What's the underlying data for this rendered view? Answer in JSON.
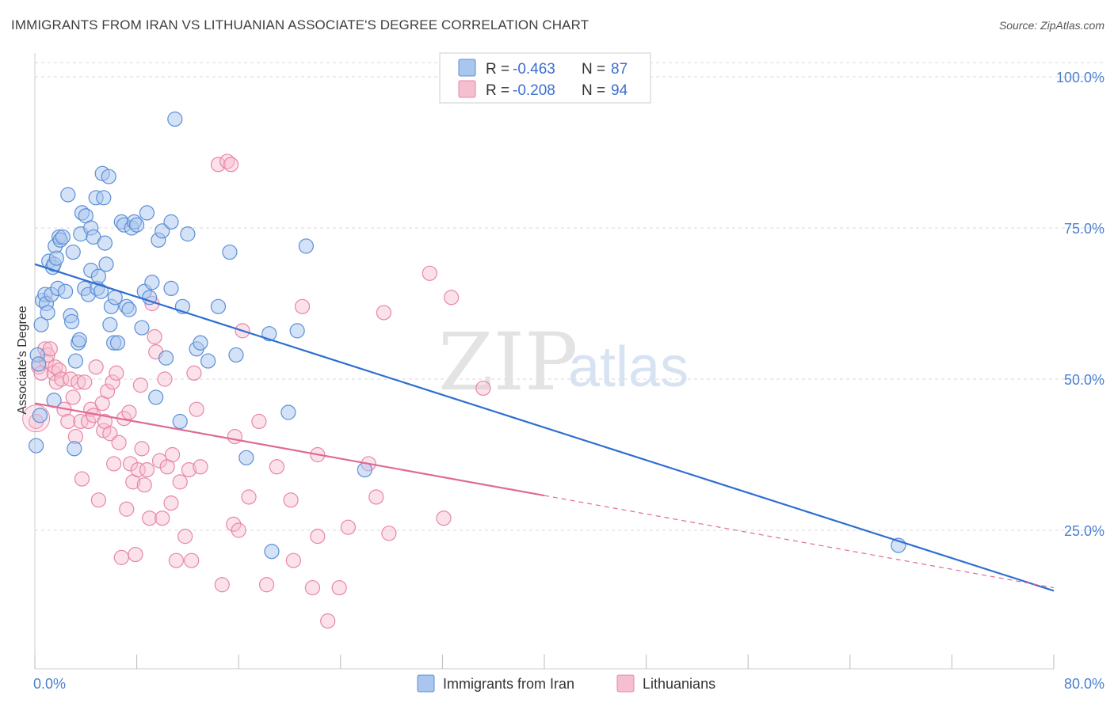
{
  "title": "IMMIGRANTS FROM IRAN VS LITHUANIAN ASSOCIATE'S DEGREE CORRELATION CHART",
  "source": "Source: ZipAtlas.com",
  "watermark": {
    "zip": "ZIP",
    "atlas": "atlas"
  },
  "colors": {
    "blue_fill": "#a9c6ef",
    "blue_stroke": "#5b8fd6",
    "blue_line": "#2f6fd0",
    "pink_fill": "#f6bfd0",
    "pink_stroke": "#e886a5",
    "pink_line": "#e06a93",
    "grid": "#d9d9d9",
    "axis_text": "#4a7fd0"
  },
  "chart_data": {
    "type": "scatter",
    "title": "IMMIGRANTS FROM IRAN VS LITHUANIAN ASSOCIATE'S DEGREE CORRELATION CHART",
    "xlabel": "",
    "ylabel": "Associate's Degree",
    "xlim": [
      0,
      80
    ],
    "ylim": [
      0,
      104
    ],
    "x_tick_labels": [
      "0.0%",
      "80.0%"
    ],
    "y_ticks": [
      25,
      50,
      75,
      100
    ],
    "y_tick_labels": [
      "25.0%",
      "50.0%",
      "75.0%",
      "100.0%"
    ],
    "grid": true,
    "legend_position": "top-center",
    "legend": [
      {
        "r_label": "R = ",
        "r_value": "-0.463",
        "n_label": "N = ",
        "n_value": "87"
      },
      {
        "r_label": "R = ",
        "r_value": "-0.208",
        "n_label": "N = ",
        "n_value": "94"
      }
    ],
    "series": [
      {
        "name": "Immigrants from Iran",
        "color": "#a9c6ef",
        "trend": {
          "x": [
            0,
            80
          ],
          "y": [
            69.0,
            15.0
          ],
          "solid_to": 80
        },
        "points": [
          [
            0.2,
            54
          ],
          [
            0.3,
            52.5
          ],
          [
            0.4,
            44
          ],
          [
            0.5,
            59
          ],
          [
            0.6,
            63
          ],
          [
            0.8,
            64
          ],
          [
            0.9,
            62.5
          ],
          [
            1.0,
            61
          ],
          [
            1.1,
            69.5
          ],
          [
            1.3,
            64
          ],
          [
            1.4,
            68.5
          ],
          [
            1.5,
            69
          ],
          [
            1.6,
            72
          ],
          [
            1.7,
            70
          ],
          [
            1.8,
            65
          ],
          [
            1.9,
            73.5
          ],
          [
            2.0,
            73
          ],
          [
            2.2,
            73.5
          ],
          [
            2.4,
            64.5
          ],
          [
            2.6,
            80.5
          ],
          [
            2.8,
            60.5
          ],
          [
            2.9,
            59.5
          ],
          [
            3.0,
            71
          ],
          [
            3.2,
            53
          ],
          [
            3.4,
            56
          ],
          [
            3.5,
            56.5
          ],
          [
            3.6,
            74
          ],
          [
            3.7,
            77.5
          ],
          [
            3.9,
            65
          ],
          [
            4.0,
            77
          ],
          [
            4.2,
            64
          ],
          [
            4.4,
            68
          ],
          [
            4.4,
            75
          ],
          [
            4.6,
            73.5
          ],
          [
            4.8,
            80
          ],
          [
            4.9,
            65
          ],
          [
            5.0,
            67
          ],
          [
            5.2,
            64.5
          ],
          [
            5.3,
            84
          ],
          [
            5.4,
            80
          ],
          [
            5.5,
            72.5
          ],
          [
            5.6,
            69
          ],
          [
            5.8,
            83.5
          ],
          [
            5.9,
            59
          ],
          [
            6.0,
            62
          ],
          [
            6.2,
            56
          ],
          [
            6.3,
            63.5
          ],
          [
            6.5,
            56
          ],
          [
            6.8,
            76
          ],
          [
            7.0,
            75.5
          ],
          [
            7.2,
            62
          ],
          [
            7.4,
            61.5
          ],
          [
            7.6,
            75
          ],
          [
            7.8,
            76
          ],
          [
            8.0,
            75.5
          ],
          [
            8.4,
            58.5
          ],
          [
            8.6,
            64.5
          ],
          [
            8.8,
            77.5
          ],
          [
            9.0,
            63.5
          ],
          [
            9.2,
            66
          ],
          [
            9.5,
            47
          ],
          [
            9.7,
            73
          ],
          [
            10.0,
            74.5
          ],
          [
            10.3,
            53.5
          ],
          [
            10.7,
            76
          ],
          [
            10.7,
            65
          ],
          [
            11.0,
            93
          ],
          [
            11.4,
            43
          ],
          [
            11.6,
            62
          ],
          [
            12.0,
            74
          ],
          [
            12.7,
            55
          ],
          [
            13.0,
            56
          ],
          [
            13.6,
            53
          ],
          [
            14.4,
            62
          ],
          [
            15.3,
            71
          ],
          [
            15.8,
            54
          ],
          [
            16.6,
            37
          ],
          [
            18.4,
            57.5
          ],
          [
            18.6,
            21.5
          ],
          [
            19.9,
            44.5
          ],
          [
            20.6,
            58
          ],
          [
            21.3,
            72
          ],
          [
            25.9,
            35
          ],
          [
            67.8,
            22.5
          ],
          [
            0.1,
            39
          ],
          [
            1.5,
            46.5
          ],
          [
            3.1,
            38.5
          ]
        ]
      },
      {
        "name": "Lithuanians",
        "color": "#f6bfd0",
        "trend": {
          "x": [
            0,
            80
          ],
          "y": [
            46.0,
            15.5
          ],
          "solid_to": 40
        },
        "points": [
          [
            0.1,
            43
          ],
          [
            0.3,
            52
          ],
          [
            0.5,
            51
          ],
          [
            0.8,
            55
          ],
          [
            0.9,
            53
          ],
          [
            1.0,
            54
          ],
          [
            1.2,
            55
          ],
          [
            1.5,
            51
          ],
          [
            1.6,
            52
          ],
          [
            1.7,
            49.5
          ],
          [
            1.9,
            51.5
          ],
          [
            2.1,
            50
          ],
          [
            2.3,
            45
          ],
          [
            2.6,
            43
          ],
          [
            2.8,
            50
          ],
          [
            3.0,
            47
          ],
          [
            3.2,
            40.5
          ],
          [
            3.4,
            49.5
          ],
          [
            3.6,
            43
          ],
          [
            3.7,
            33.5
          ],
          [
            3.9,
            49.5
          ],
          [
            4.2,
            43
          ],
          [
            4.4,
            45
          ],
          [
            4.6,
            44
          ],
          [
            4.8,
            52
          ],
          [
            5.0,
            30
          ],
          [
            5.3,
            46
          ],
          [
            5.4,
            41.5
          ],
          [
            5.5,
            43
          ],
          [
            5.7,
            48
          ],
          [
            5.9,
            41
          ],
          [
            6.1,
            49.5
          ],
          [
            6.2,
            36
          ],
          [
            6.4,
            51
          ],
          [
            6.6,
            39.5
          ],
          [
            6.8,
            20.5
          ],
          [
            7.0,
            43.5
          ],
          [
            7.2,
            28.5
          ],
          [
            7.4,
            44.5
          ],
          [
            7.5,
            36
          ],
          [
            7.7,
            33
          ],
          [
            7.9,
            21
          ],
          [
            8.1,
            35
          ],
          [
            8.3,
            49
          ],
          [
            8.4,
            38.5
          ],
          [
            8.6,
            32.5
          ],
          [
            8.8,
            35
          ],
          [
            9.0,
            27
          ],
          [
            9.2,
            62.5
          ],
          [
            9.4,
            57
          ],
          [
            9.5,
            54.5
          ],
          [
            9.8,
            36.5
          ],
          [
            10.0,
            27
          ],
          [
            10.2,
            50
          ],
          [
            10.4,
            35.5
          ],
          [
            10.7,
            29.5
          ],
          [
            10.8,
            37.5
          ],
          [
            11.1,
            20
          ],
          [
            11.4,
            33
          ],
          [
            11.8,
            24
          ],
          [
            12.1,
            35
          ],
          [
            12.3,
            20
          ],
          [
            12.5,
            51
          ],
          [
            12.7,
            45
          ],
          [
            13.0,
            35.5
          ],
          [
            14.7,
            16
          ],
          [
            15.6,
            26
          ],
          [
            15.7,
            40.5
          ],
          [
            16.0,
            25
          ],
          [
            16.3,
            58
          ],
          [
            16.8,
            30.5
          ],
          [
            17.6,
            43
          ],
          [
            18.2,
            16
          ],
          [
            19.0,
            35.5
          ],
          [
            20.1,
            30
          ],
          [
            20.3,
            20
          ],
          [
            21.0,
            62
          ],
          [
            21.8,
            15.5
          ],
          [
            22.2,
            24
          ],
          [
            22.2,
            37.5
          ],
          [
            23.0,
            10
          ],
          [
            23.9,
            15.5
          ],
          [
            24.6,
            25.5
          ],
          [
            26.2,
            36
          ],
          [
            26.8,
            30.5
          ],
          [
            27.4,
            61
          ],
          [
            27.8,
            24.5
          ],
          [
            31.0,
            67.5
          ],
          [
            32.1,
            27
          ],
          [
            32.7,
            63.5
          ],
          [
            35.2,
            48.5
          ],
          [
            14.4,
            85.5
          ],
          [
            15.1,
            86
          ],
          [
            15.4,
            85.5
          ]
        ]
      }
    ]
  },
  "bottom_legend": [
    "Immigrants from Iran",
    "Lithuanians"
  ]
}
